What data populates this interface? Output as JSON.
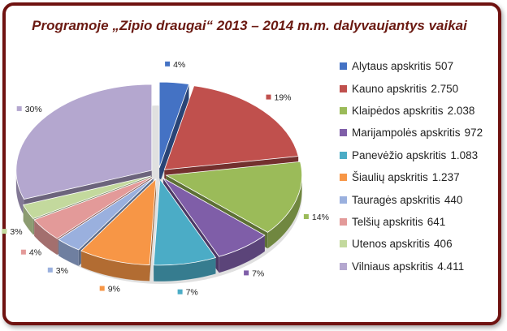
{
  "chart_data": {
    "type": "pie",
    "title": "Programoje „Zipio draugai“ 2013 – 2014 m.m. dalyvaujantys vaikai",
    "legend_position": "right",
    "slices": [
      {
        "label": "Alytaus apskritis",
        "value": 507,
        "value_label": "507",
        "percent_label": "4%",
        "color": "#4472c4"
      },
      {
        "label": "Kauno apskritis",
        "value": 2750,
        "value_label": "2.750",
        "percent_label": "19%",
        "color": "#c0504d"
      },
      {
        "label": "Klaipėdos apskritis",
        "value": 2038,
        "value_label": "2.038",
        "percent_label": "14%",
        "color": "#9bbb59"
      },
      {
        "label": "Marijampolės apskritis",
        "value": 972,
        "value_label": "972",
        "percent_label": "7%",
        "color": "#7f5ea8"
      },
      {
        "label": "Panevėžio apskritis",
        "value": 1083,
        "value_label": "1.083",
        "percent_label": "7%",
        "color": "#4bacc6"
      },
      {
        "label": "Šiaulių apskritis",
        "value": 1237,
        "value_label": "1.237",
        "percent_label": "9%",
        "color": "#f79646"
      },
      {
        "label": "Tauragės apskritis",
        "value": 440,
        "value_label": "440",
        "percent_label": "3%",
        "color": "#9ab0de"
      },
      {
        "label": "Telšių apskritis",
        "value": 641,
        "value_label": "641",
        "percent_label": "4%",
        "color": "#e39a99"
      },
      {
        "label": "Utenos apskritis",
        "value": 406,
        "value_label": "406",
        "percent_label": "3%",
        "color": "#c3d99d"
      },
      {
        "label": "Vilniaus apskritis",
        "value": 4411,
        "value_label": "4.411",
        "percent_label": "30%",
        "color": "#b4a7cf"
      }
    ]
  }
}
